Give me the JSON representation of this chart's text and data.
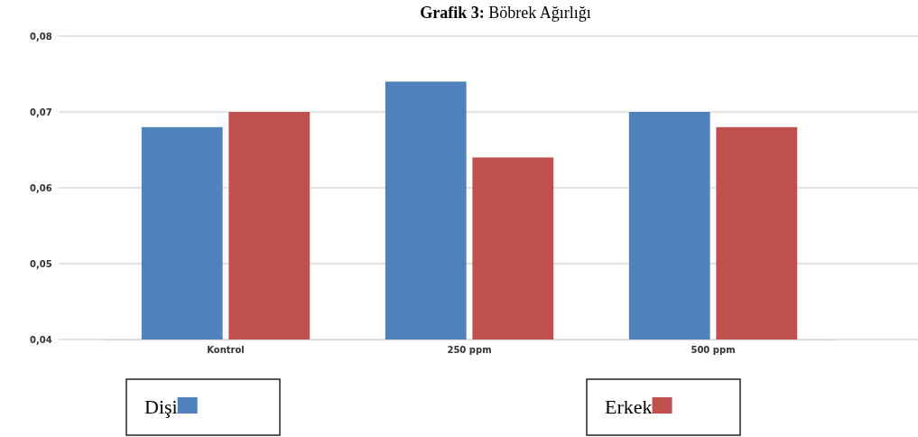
{
  "chart_data": {
    "type": "bar",
    "title": "Grafik 3: Böbrek Ağırlığı",
    "categories": [
      "Kontrol",
      "250 ppm",
      "500 ppm"
    ],
    "series": [
      {
        "name": "Dişi",
        "color": "#4f81bd",
        "values": [
          0.068,
          0.074,
          0.07
        ]
      },
      {
        "name": "Erkek",
        "color": "#c0504d",
        "values": [
          0.07,
          0.064,
          0.068
        ]
      }
    ],
    "ylim": [
      0.04,
      0.08
    ],
    "yticks": [
      {
        "value": 0.04,
        "label": "0,04"
      },
      {
        "value": 0.05,
        "label": "0,05"
      },
      {
        "value": 0.06,
        "label": "0,06"
      },
      {
        "value": 0.07,
        "label": "0,07"
      },
      {
        "value": 0.08,
        "label": "0,08"
      }
    ],
    "grid": "y",
    "legend": "bottom"
  }
}
